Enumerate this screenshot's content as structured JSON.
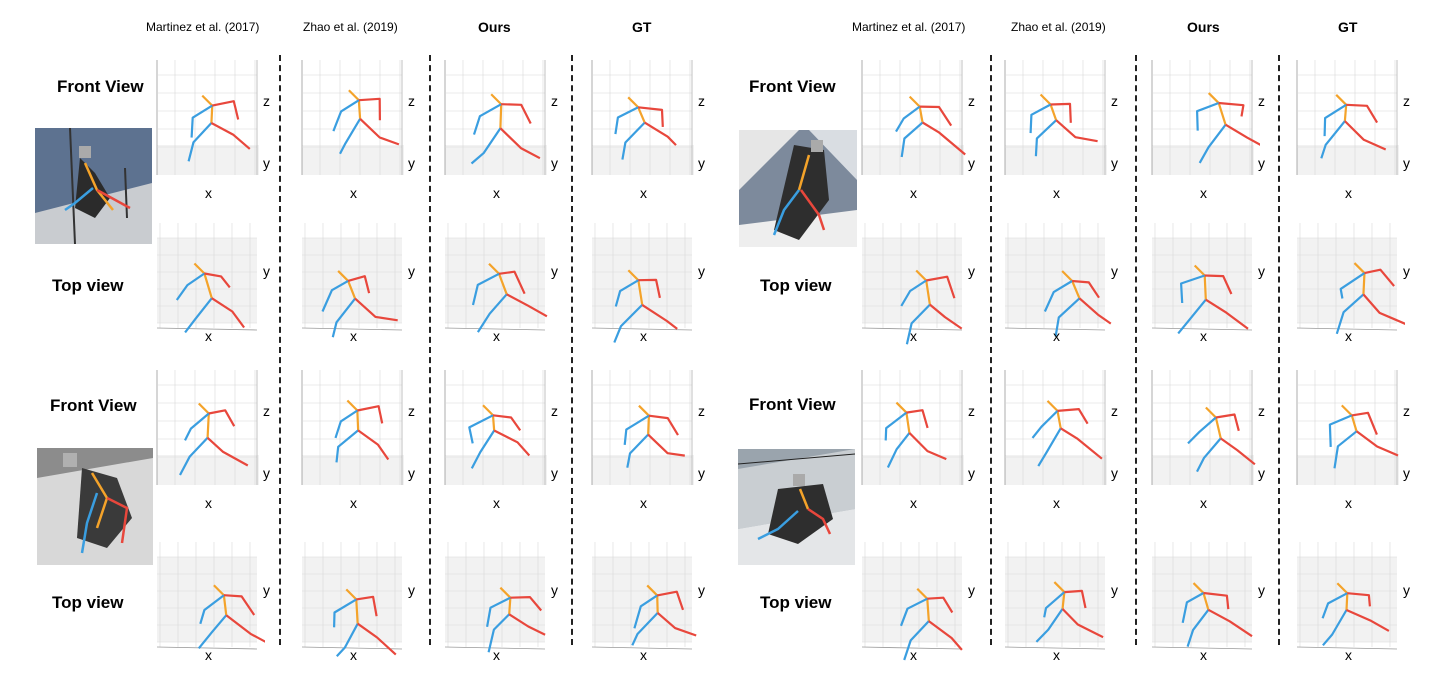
{
  "methods": [
    "Martinez et al. (2017)",
    "Zhao et al. (2019)",
    "Ours",
    "GT"
  ],
  "row_labels": {
    "front": "Front View",
    "top": "Top view"
  },
  "axis_labels": {
    "x": "x",
    "y": "y",
    "z": "z"
  },
  "colors": {
    "left_limb": "#e8473c",
    "right_limb": "#3a9ee0",
    "torso": "#f4a32a",
    "grid": "#d8d8d8",
    "panel": "#f2f2f2"
  }
}
